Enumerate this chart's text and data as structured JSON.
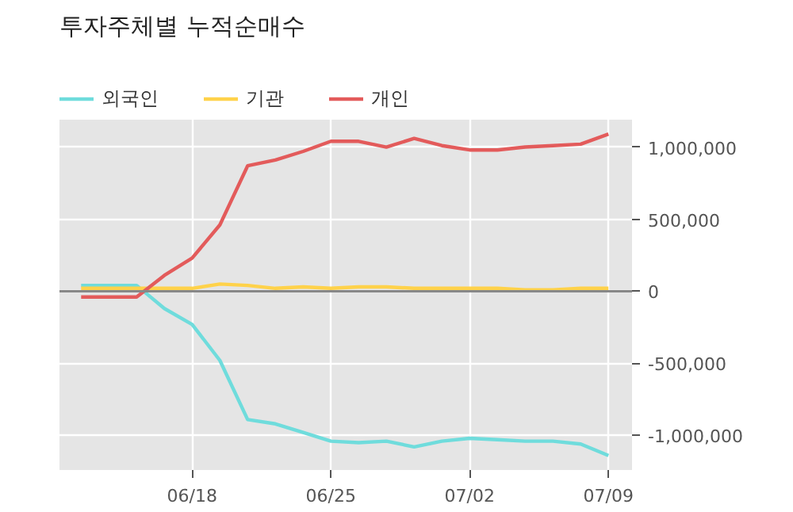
{
  "chart_data": {
    "type": "line",
    "title": "투자주체별 누적순매수",
    "categories": [
      null,
      null,
      null,
      null,
      "06/18",
      null,
      null,
      null,
      null,
      "06/25",
      null,
      null,
      null,
      null,
      "07/02",
      null,
      null,
      null,
      null,
      "07/09"
    ],
    "series": [
      {
        "name": "외국인",
        "color": "#6fdcdc",
        "values": [
          40000,
          40000,
          40000,
          -120000,
          -230000,
          -480000,
          -890000,
          -920000,
          -980000,
          -1040000,
          -1050000,
          -1040000,
          -1080000,
          -1040000,
          -1020000,
          -1030000,
          -1040000,
          -1040000,
          -1060000,
          -1140000
        ]
      },
      {
        "name": "기관",
        "color": "#ffd24a",
        "values": [
          20000,
          20000,
          20000,
          20000,
          20000,
          50000,
          40000,
          20000,
          30000,
          20000,
          30000,
          30000,
          20000,
          20000,
          20000,
          20000,
          10000,
          10000,
          20000,
          20000
        ]
      },
      {
        "name": "개인",
        "color": "#e35b5b",
        "values": [
          -40000,
          -40000,
          -40000,
          110000,
          230000,
          460000,
          870000,
          910000,
          970000,
          1040000,
          1040000,
          1000000,
          1060000,
          1010000,
          980000,
          980000,
          1000000,
          1010000,
          1020000,
          1090000
        ]
      }
    ],
    "ylim": [
      -1240000,
      1190000
    ],
    "yticks": [
      {
        "value": -1000000,
        "label": "-1,000,000"
      },
      {
        "value": -500000,
        "label": "-500,000"
      },
      {
        "value": 0,
        "label": "0"
      },
      {
        "value": 500000,
        "label": "500,000"
      },
      {
        "value": 1000000,
        "label": "1,000,000"
      }
    ],
    "ref_lines": [
      {
        "axis": "y",
        "value": 0,
        "color": "#888888"
      }
    ],
    "grid": true,
    "legend": "top left",
    "marker": "none",
    "line_style": "solid"
  }
}
